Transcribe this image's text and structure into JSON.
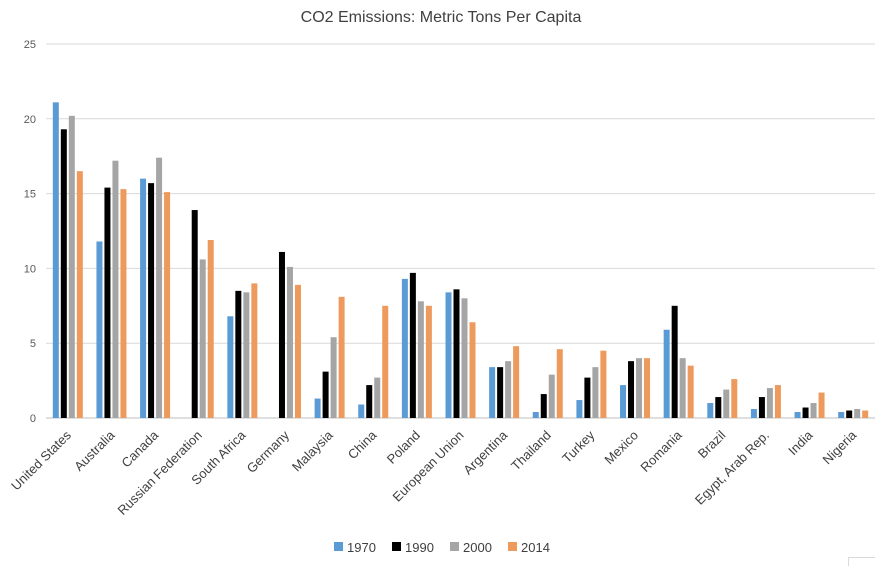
{
  "chart_data": {
    "type": "bar",
    "title": "CO2 Emissions: Metric Tons Per Capita",
    "xlabel": "",
    "ylabel": "",
    "ylim": [
      0,
      25
    ],
    "yticks": [
      "0",
      "5",
      "10",
      "15",
      "20",
      "25"
    ],
    "grid": true,
    "legend_position": "bottom",
    "categories": [
      "United States",
      "Australia",
      "Canada",
      "Russian Federation",
      "South Africa",
      "Germany",
      "Malaysia",
      "China",
      "Poland",
      "European Union",
      "Argentina",
      "Thailand",
      "Turkey",
      "Mexico",
      "Romania",
      "Brazil",
      "Egypt, Arab Rep.",
      "India",
      "Nigeria"
    ],
    "series": [
      {
        "name": "1970",
        "color": "#5b9bd5",
        "values": [
          21.1,
          11.8,
          16.0,
          null,
          6.8,
          null,
          1.3,
          0.9,
          9.3,
          8.4,
          3.4,
          0.4,
          1.2,
          2.2,
          5.9,
          1.0,
          0.6,
          0.4,
          0.4
        ]
      },
      {
        "name": "1990",
        "color": "#000000",
        "values": [
          19.3,
          15.4,
          15.7,
          13.9,
          8.5,
          11.1,
          3.1,
          2.2,
          9.7,
          8.6,
          3.4,
          1.6,
          2.7,
          3.8,
          7.5,
          1.4,
          1.4,
          0.7,
          0.5
        ]
      },
      {
        "name": "2000",
        "color": "#a5a5a5",
        "values": [
          20.2,
          17.2,
          17.4,
          10.6,
          8.4,
          10.1,
          5.4,
          2.7,
          7.8,
          8.0,
          3.8,
          2.9,
          3.4,
          4.0,
          4.0,
          1.9,
          2.0,
          1.0,
          0.6
        ]
      },
      {
        "name": "2014",
        "color": "#ed9a5c",
        "values": [
          16.5,
          15.3,
          15.1,
          11.9,
          9.0,
          8.9,
          8.1,
          7.5,
          7.5,
          6.4,
          4.8,
          4.6,
          4.5,
          4.0,
          3.5,
          2.6,
          2.2,
          1.7,
          0.5
        ]
      }
    ]
  }
}
